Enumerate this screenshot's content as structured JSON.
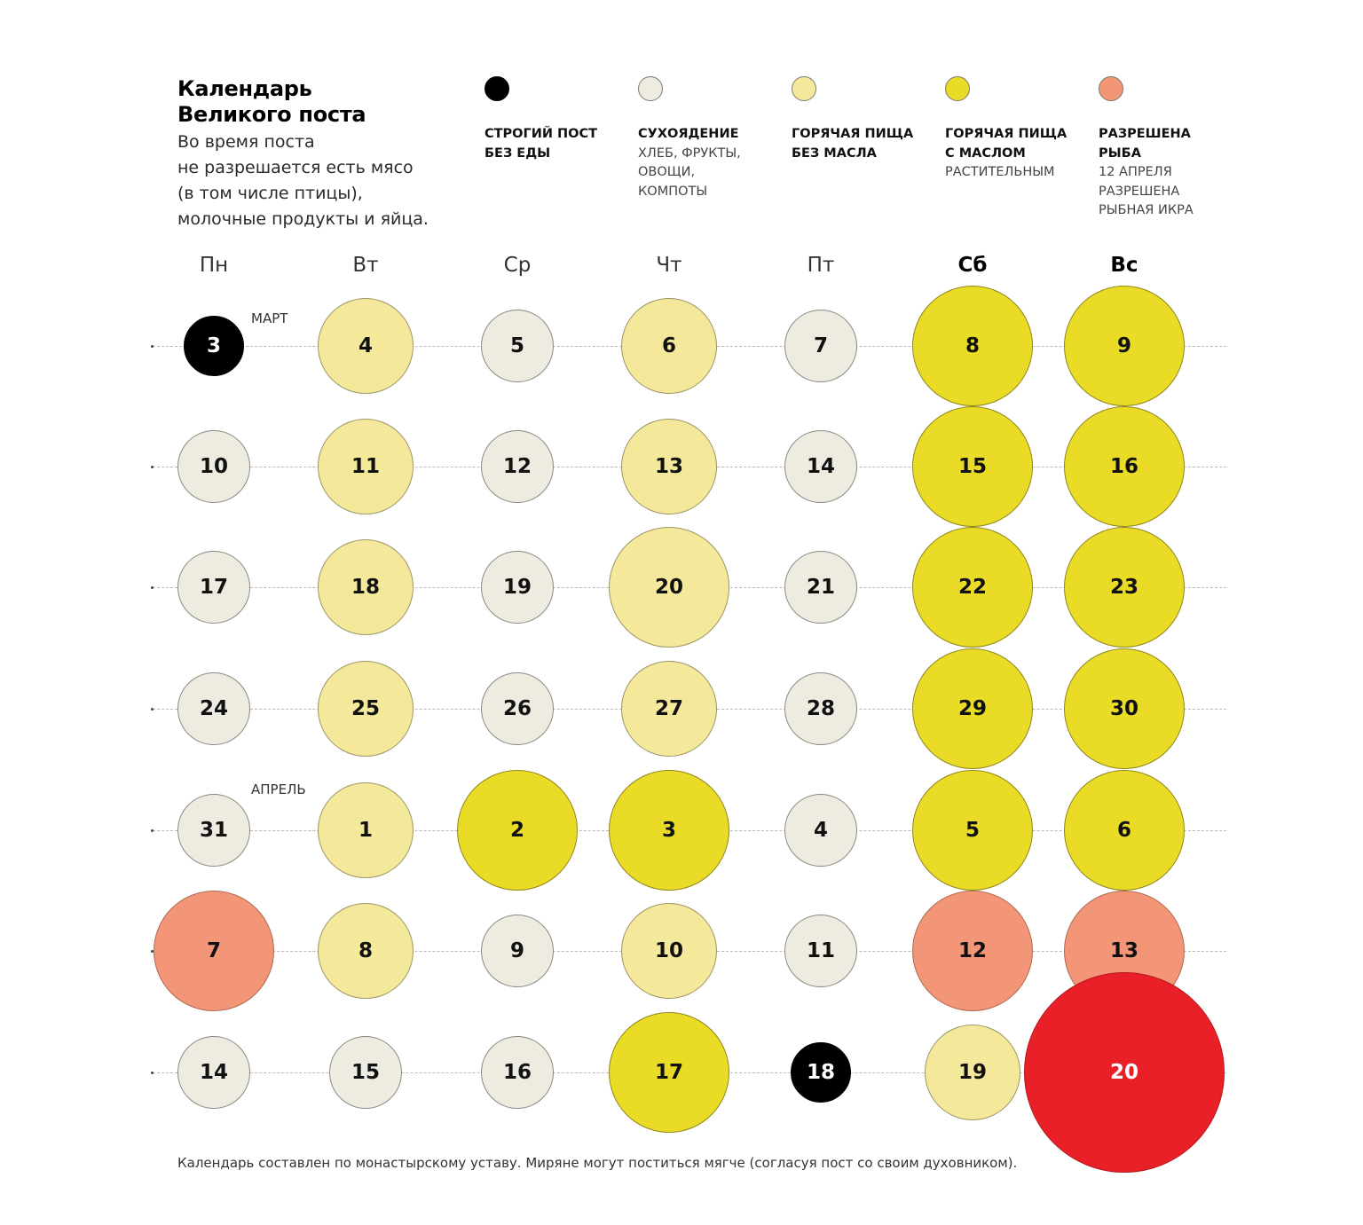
{
  "header": {
    "title_lines": [
      "Календарь",
      "Великого поста"
    ],
    "subtitle_lines": [
      "Во время поста",
      "не разрешается есть мясо",
      "(в том числе птицы),",
      "молочные продукты и яйца."
    ]
  },
  "legend": [
    {
      "key": "strict",
      "color": "#000000",
      "bold_lines": [
        "СТРОГИЙ ПОСТ",
        "БЕЗ ЕДЫ"
      ],
      "light_lines": []
    },
    {
      "key": "dry",
      "color": "#eeebe1",
      "bold_lines": [
        "СУХОЯДЕНИЕ"
      ],
      "light_lines": [
        "ХЛЕБ, ФРУКТЫ,",
        "ОВОЩИ,",
        "КОМПОТЫ"
      ]
    },
    {
      "key": "hot",
      "color": "#f4e99b",
      "bold_lines": [
        "ГОРЯЧАЯ ПИЩА",
        "БЕЗ МАСЛА"
      ],
      "light_lines": []
    },
    {
      "key": "oil",
      "color": "#eadc26",
      "bold_lines": [
        "ГОРЯЧАЯ ПИЩА",
        "С МАСЛОМ"
      ],
      "light_lines": [
        "РАСТИТЕЛЬНЫМ"
      ]
    },
    {
      "key": "fish",
      "color": "#f39677",
      "bold_lines": [
        "РАЗРЕШЕНА",
        "РЫБА"
      ],
      "light_lines": [
        "12 АПРЕЛЯ",
        "РАЗРЕШЕНА",
        "РЫБНАЯ ИКРА"
      ]
    }
  ],
  "weekdays": [
    "Пн",
    "Вт",
    "Ср",
    "Чт",
    "Пт",
    "Сб",
    "Вс"
  ],
  "month_labels": {
    "march": "МАРТ",
    "april": "АПРЕЛЬ"
  },
  "weeks": [
    [
      {
        "day": "3",
        "type": "strict"
      },
      {
        "day": "4",
        "type": "hot"
      },
      {
        "day": "5",
        "type": "dry"
      },
      {
        "day": "6",
        "type": "hot"
      },
      {
        "day": "7",
        "type": "dry"
      },
      {
        "day": "8",
        "type": "oil"
      },
      {
        "day": "9",
        "type": "oil"
      }
    ],
    [
      {
        "day": "10",
        "type": "dry"
      },
      {
        "day": "11",
        "type": "hot"
      },
      {
        "day": "12",
        "type": "dry"
      },
      {
        "day": "13",
        "type": "hot"
      },
      {
        "day": "14",
        "type": "dry"
      },
      {
        "day": "15",
        "type": "oil"
      },
      {
        "day": "16",
        "type": "oil"
      }
    ],
    [
      {
        "day": "17",
        "type": "dry"
      },
      {
        "day": "18",
        "type": "hot"
      },
      {
        "day": "19",
        "type": "dry"
      },
      {
        "day": "20",
        "type": "hot"
      },
      {
        "day": "21",
        "type": "dry"
      },
      {
        "day": "22",
        "type": "oil"
      },
      {
        "day": "23",
        "type": "oil"
      }
    ],
    [
      {
        "day": "24",
        "type": "dry"
      },
      {
        "day": "25",
        "type": "hot"
      },
      {
        "day": "26",
        "type": "dry"
      },
      {
        "day": "27",
        "type": "hot"
      },
      {
        "day": "28",
        "type": "dry"
      },
      {
        "day": "29",
        "type": "oil"
      },
      {
        "day": "30",
        "type": "oil"
      }
    ],
    [
      {
        "day": "31",
        "type": "dry"
      },
      {
        "day": "1",
        "type": "hot"
      },
      {
        "day": "2",
        "type": "oil"
      },
      {
        "day": "3",
        "type": "oil"
      },
      {
        "day": "4",
        "type": "dry"
      },
      {
        "day": "5",
        "type": "oil"
      },
      {
        "day": "6",
        "type": "oil"
      }
    ],
    [
      {
        "day": "7",
        "type": "fish"
      },
      {
        "day": "8",
        "type": "hot"
      },
      {
        "day": "9",
        "type": "dry"
      },
      {
        "day": "10",
        "type": "hot"
      },
      {
        "day": "11",
        "type": "dry"
      },
      {
        "day": "12",
        "type": "fish"
      },
      {
        "day": "13",
        "type": "fish"
      }
    ],
    [
      {
        "day": "14",
        "type": "dry"
      },
      {
        "day": "15",
        "type": "dry"
      },
      {
        "day": "16",
        "type": "dry"
      },
      {
        "day": "17",
        "type": "oil"
      },
      {
        "day": "18",
        "type": "strict"
      },
      {
        "day": "19",
        "type": "hot"
      },
      {
        "day": "20",
        "type": "easter"
      }
    ]
  ],
  "type_styles": {
    "strict": {
      "fill": "#000000",
      "text": "#ffffff",
      "border": "#000000"
    },
    "dry": {
      "fill": "#eeebe1",
      "text": "#111111",
      "border": "#8a8a84"
    },
    "hot": {
      "fill": "#f4e99b",
      "text": "#111111",
      "border": "#9c9466"
    },
    "oil": {
      "fill": "#eadc26",
      "text": "#111111",
      "border": "#8f861a"
    },
    "fish": {
      "fill": "#f39677",
      "text": "#111111",
      "border": "#b06a52"
    },
    "easter": {
      "fill": "#e92028",
      "text": "#ffffff",
      "border": "#b5171d"
    }
  },
  "footer": "Календарь составлен по монастырскому уставу. Миряне могут поститься мягче (согласуя пост со своим духовником)."
}
